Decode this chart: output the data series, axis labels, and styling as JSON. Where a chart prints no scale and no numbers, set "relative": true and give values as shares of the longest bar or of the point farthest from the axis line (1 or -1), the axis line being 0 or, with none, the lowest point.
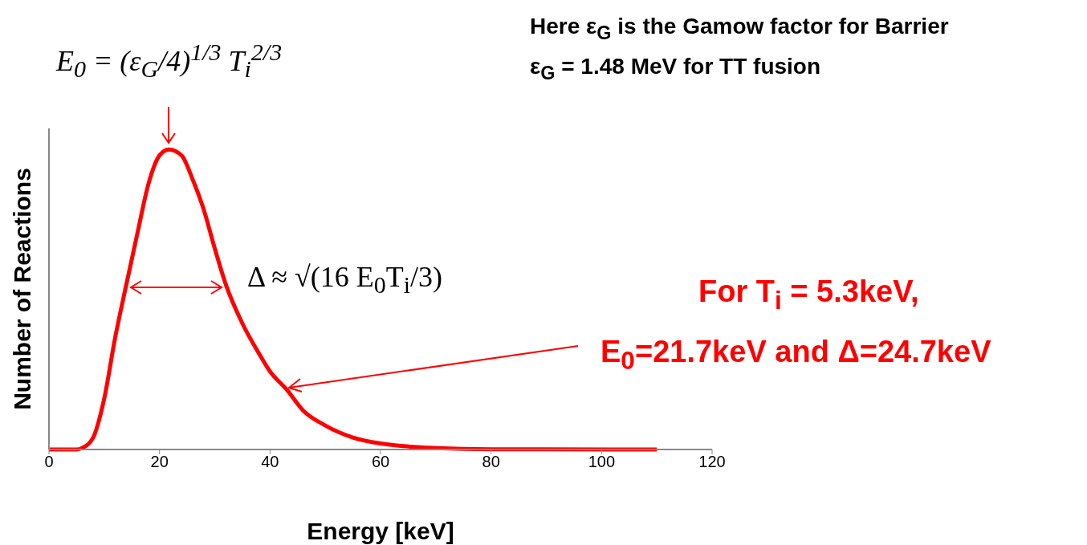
{
  "chart_data": {
    "type": "line",
    "relative": true,
    "xlabel": "Energy [keV]",
    "ylabel": "Number of Reactions",
    "x": [
      0,
      5,
      6,
      8,
      10,
      12,
      14,
      16,
      18,
      20,
      21.7,
      24,
      26,
      28,
      30,
      32,
      35,
      38,
      40,
      43,
      46,
      50,
      55,
      60,
      70,
      80,
      110
    ],
    "series": [
      {
        "color": "#ff0000",
        "values": [
          0,
          0,
          0.005,
          0.04,
          0.17,
          0.375,
          0.55,
          0.72,
          0.885,
          0.98,
          1,
          0.98,
          0.9,
          0.8,
          0.67,
          0.55,
          0.42,
          0.32,
          0.26,
          0.2,
          0.13,
          0.08,
          0.04,
          0.02,
          0.005,
          0.001,
          0
        ]
      }
    ],
    "xlim": [
      0,
      120
    ],
    "xticks": [
      0,
      20,
      40,
      60,
      80,
      100,
      120
    ],
    "tick_labels": "x",
    "marker": "none",
    "line_style": "solid",
    "annotations": [
      "E$_{0}$ = (ε$_{G}$/4)$^{1/3}$ T$_{i}$$^{2/3}$",
      "Here ε$_{G}$ is the Gamow factor for Barrier",
      "ε$_{G}$ = 1.48 MeV for TT fusion",
      "Δ ≈ √(16 E$_{0}$T$_{i}$/3)",
      "For T$_{i}$ = 5.3keV,",
      "E$_{0}$=21.7keV and Δ=24.7keV"
    ]
  }
}
